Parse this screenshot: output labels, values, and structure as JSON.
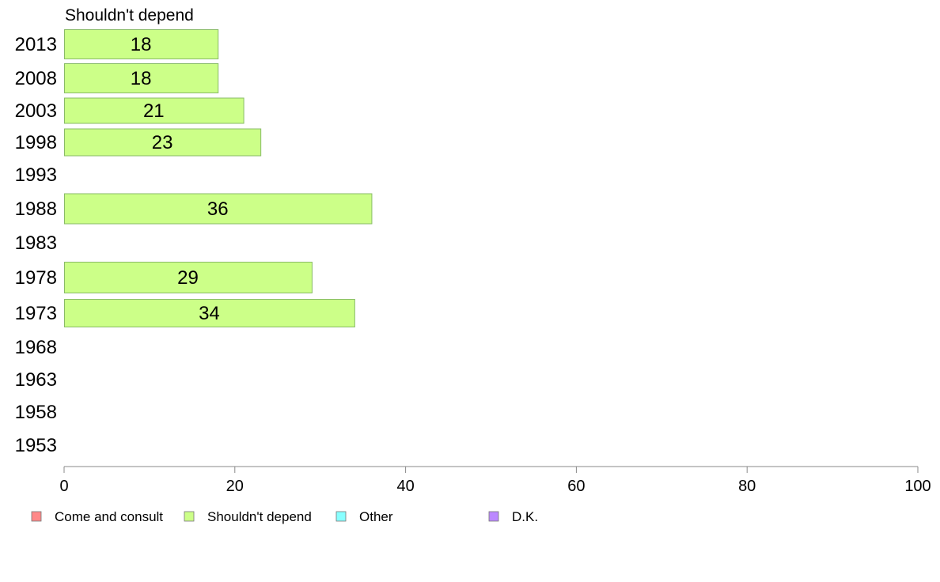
{
  "chart_data": {
    "type": "bar",
    "orientation": "horizontal",
    "title": "Shouldn't depend",
    "categories": [
      "2013",
      "2008",
      "2003",
      "1998",
      "1993",
      "1988",
      "1983",
      "1978",
      "1973",
      "1968",
      "1963",
      "1958",
      "1953"
    ],
    "series": [
      {
        "name": "Shouldn't depend",
        "color": "#ccff88",
        "values": [
          18,
          18,
          21,
          23,
          null,
          36,
          null,
          29,
          34,
          null,
          null,
          null,
          null
        ]
      }
    ],
    "xlim": [
      0,
      100
    ],
    "xticks": [
      0,
      20,
      40,
      60,
      80,
      100
    ],
    "grid": false,
    "legend": {
      "placement": "bottom",
      "items": [
        {
          "label": "Come and consult",
          "color": "#ff8888"
        },
        {
          "label": "Shouldn't depend",
          "color": "#ccff88"
        },
        {
          "label": "Other",
          "color": "#88ffff"
        },
        {
          "label": "D.K.",
          "color": "#bb88ff"
        }
      ]
    }
  }
}
